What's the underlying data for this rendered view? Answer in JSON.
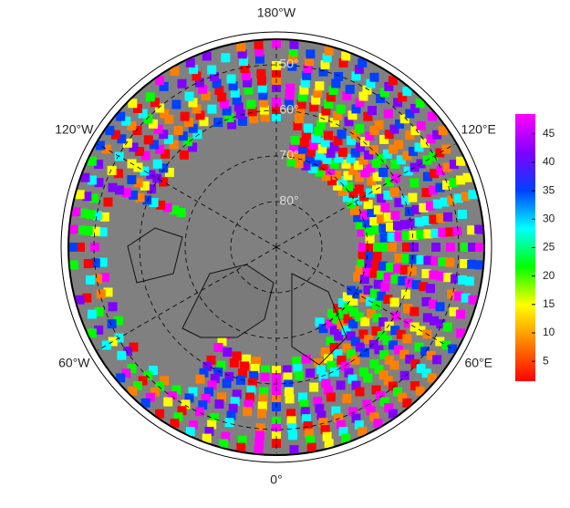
{
  "map": {
    "longitude_labels": [
      {
        "value": 180,
        "label": "180°W"
      },
      {
        "value": -120,
        "label": "120°W"
      },
      {
        "value": 120,
        "label": "120°E"
      },
      {
        "value": -60,
        "label": "60°W"
      },
      {
        "value": 60,
        "label": "60°E"
      },
      {
        "value": 0,
        "label": "0°"
      }
    ],
    "latitude_labels": [
      {
        "value": 50,
        "label": "50°"
      },
      {
        "value": 60,
        "label": "60°"
      },
      {
        "value": 70,
        "label": "70°"
      },
      {
        "value": 80,
        "label": "80°"
      }
    ],
    "colorbar": {
      "range": [
        1.5,
        48.5
      ],
      "ticks": [
        5,
        10,
        15,
        20,
        25,
        30,
        35,
        40,
        45
      ],
      "colors": [
        "#ff0000",
        "#ff8000",
        "#ffff00",
        "#00ff00",
        "#00ffff",
        "#0040ff",
        "#8000ff",
        "#ff00ff"
      ]
    }
  }
}
